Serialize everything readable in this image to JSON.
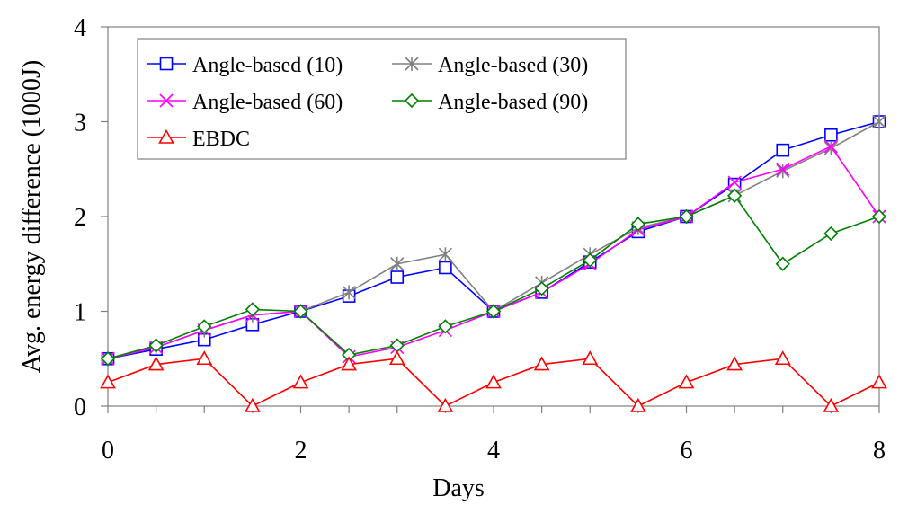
{
  "chart_data": {
    "type": "line",
    "title": "",
    "xlabel": "Days",
    "ylabel": "Avg. energy difference (1000J)",
    "xlim": [
      0,
      8
    ],
    "ylim": [
      0,
      4
    ],
    "xticks": [
      0,
      2,
      4,
      6,
      8
    ],
    "yticks": [
      0,
      1,
      2,
      3,
      4
    ],
    "grid": false,
    "legend_position": "top-left",
    "x": [
      0,
      0.5,
      1,
      1.5,
      2,
      2.5,
      3,
      3.5,
      4,
      4.5,
      5,
      5.5,
      6,
      6.5,
      7,
      7.5,
      8
    ],
    "series": [
      {
        "name": "Angle-based (10)",
        "color": "#0000ff",
        "marker": "square",
        "values": [
          0.5,
          0.6,
          0.7,
          0.86,
          1.0,
          1.16,
          1.36,
          1.46,
          1.0,
          1.2,
          1.52,
          1.84,
          2.0,
          2.34,
          2.7,
          2.86,
          3.0
        ]
      },
      {
        "name": "Angle-based (30)",
        "color": "#808080",
        "marker": "asterisk",
        "values": [
          0.5,
          0.62,
          0.8,
          0.96,
          1.0,
          1.2,
          1.5,
          1.6,
          1.0,
          1.3,
          1.6,
          1.88,
          2.0,
          2.22,
          2.48,
          2.72,
          3.0
        ]
      },
      {
        "name": "Angle-based (60)",
        "color": "#ff00ff",
        "marker": "x",
        "values": [
          0.5,
          0.62,
          0.8,
          0.96,
          1.0,
          0.52,
          0.62,
          0.8,
          1.0,
          1.2,
          1.5,
          1.86,
          2.0,
          2.36,
          2.5,
          2.74,
          2.0
        ]
      },
      {
        "name": "Angle-based (90)",
        "color": "#008000",
        "marker": "diamond",
        "values": [
          0.5,
          0.64,
          0.84,
          1.02,
          1.0,
          0.54,
          0.64,
          0.84,
          1.0,
          1.24,
          1.54,
          1.92,
          2.0,
          2.22,
          1.5,
          1.82,
          2.0
        ]
      },
      {
        "name": "EBDC",
        "color": "#ff0000",
        "marker": "triangle",
        "values": [
          0.25,
          0.44,
          0.5,
          0.0,
          0.25,
          0.44,
          0.5,
          0.0,
          0.25,
          0.44,
          0.5,
          0.0,
          0.25,
          0.44,
          0.5,
          0.0,
          0.25
        ]
      }
    ]
  }
}
